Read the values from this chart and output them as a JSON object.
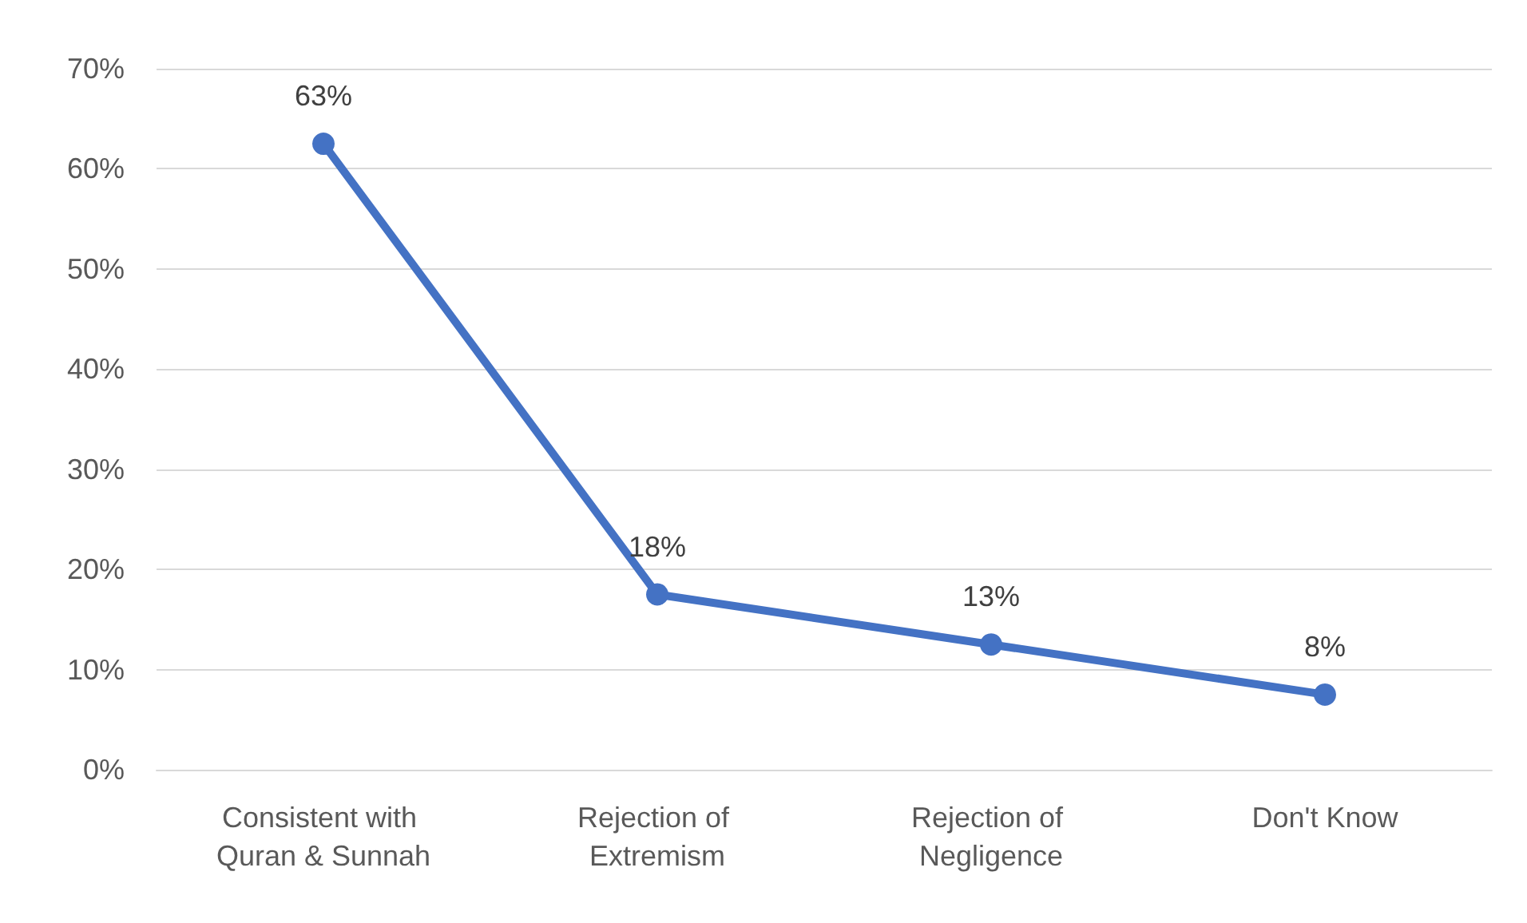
{
  "chart_data": {
    "type": "line",
    "categories": [
      "Consistent with Quran & Sunnah",
      "Rejection of Extremism",
      "Rejection of Negligence",
      "Don't Know"
    ],
    "values": [
      62.5,
      17.5,
      12.5,
      7.5
    ],
    "value_labels": [
      "63%",
      "18%",
      "13%",
      "8%"
    ],
    "color": "#4472c4",
    "marker": "circle",
    "grid": "y",
    "ylim": [
      0,
      70
    ],
    "yticks": [
      {
        "value": 0,
        "label": "0%"
      },
      {
        "value": 10,
        "label": "10%"
      },
      {
        "value": 20,
        "label": "20%"
      },
      {
        "value": 30,
        "label": "30%"
      },
      {
        "value": 40,
        "label": "40%"
      },
      {
        "value": 50,
        "label": "50%"
      },
      {
        "value": 60,
        "label": "60%"
      },
      {
        "value": 70,
        "label": "70%"
      }
    ]
  }
}
